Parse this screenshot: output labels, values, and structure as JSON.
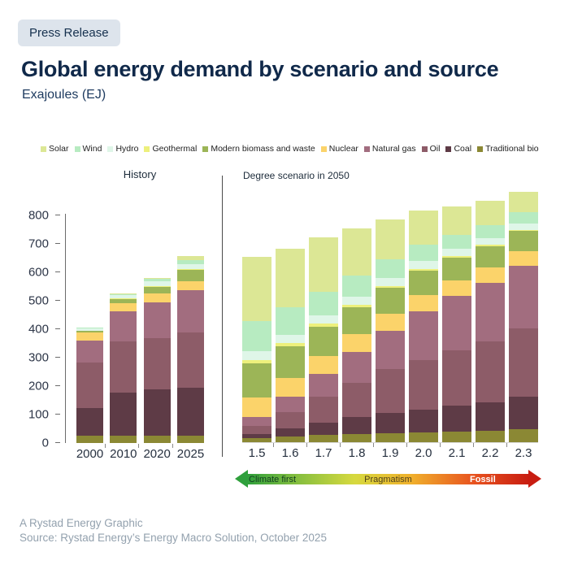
{
  "badge": "Press Release",
  "header": {
    "title": "Global energy demand by scenario and source",
    "subtitle": "Exajoules (EJ)"
  },
  "axis_arrow": {
    "left": "Climate first",
    "center": "Pragmatism",
    "right": "Fossil"
  },
  "footer": {
    "credit": "A Rystad Energy Graphic",
    "source": "Source: Rystad Energy’s Energy Macro Solution, October 2025"
  },
  "chart_data": {
    "type": "bar",
    "stacked": true,
    "unit": "EJ",
    "ylabel": "Exajoules (EJ)",
    "ylim": [
      0,
      800
    ],
    "yticks": [
      0,
      100,
      200,
      300,
      400,
      500,
      600,
      700,
      800
    ],
    "grid": false,
    "legend_position": "top",
    "panels": [
      {
        "title": "History",
        "categories": [
          "2000",
          "2010",
          "2020",
          "2025"
        ]
      },
      {
        "title": "Degree scenario in 2050",
        "categories": [
          "1.5",
          "1.6",
          "1.7",
          "1.8",
          "1.9",
          "2.0",
          "2.1",
          "2.2",
          "2.3"
        ]
      }
    ],
    "series": [
      {
        "name": "Solar",
        "color": "#dce795",
        "history": [
          0.5,
          1,
          5,
          12
        ],
        "scenario": [
          226,
          208,
          190,
          165,
          140,
          120,
          100,
          85,
          70
        ]
      },
      {
        "name": "Wind",
        "color": "#b7ebc1",
        "history": [
          1,
          3,
          8,
          16
        ],
        "scenario": [
          105,
          95,
          85,
          75,
          65,
          57,
          50,
          45,
          40
        ]
      },
      {
        "name": "Hydro",
        "color": "#dff6e8",
        "history": [
          9,
          12,
          16,
          16
        ],
        "scenario": [
          30,
          30,
          29,
          28,
          27,
          26,
          25,
          24,
          23
        ]
      },
      {
        "name": "Geothermal",
        "color": "#edf07c",
        "history": [
          1,
          2,
          2,
          2
        ],
        "scenario": [
          14,
          12,
          10,
          9,
          8,
          7,
          6,
          5,
          5
        ]
      },
      {
        "name": "Modern biomass and waste",
        "color": "#9cb557",
        "history": [
          5,
          15,
          25,
          40
        ],
        "scenario": [
          118,
          110,
          102,
          95,
          90,
          85,
          80,
          75,
          70
        ]
      },
      {
        "name": "Nuclear",
        "color": "#fbd36a",
        "history": [
          29,
          30,
          30,
          32
        ],
        "scenario": [
          69,
          66,
          64,
          62,
          60,
          58,
          56,
          54,
          52
        ]
      },
      {
        "name": "Natural gas",
        "color": "#a26d7f",
        "history": [
          78,
          105,
          125,
          150
        ],
        "scenario": [
          33,
          55,
          80,
          110,
          135,
          170,
          190,
          205,
          220
        ]
      },
      {
        "name": "Oil",
        "color": "#8d5c68",
        "history": [
          160,
          180,
          180,
          195
        ],
        "scenario": [
          27,
          55,
          90,
          120,
          155,
          175,
          195,
          215,
          240
        ]
      },
      {
        "name": "Coal",
        "color": "#5e3b46",
        "history": [
          97,
          150,
          165,
          168
        ],
        "scenario": [
          16,
          30,
          45,
          60,
          70,
          80,
          90,
          100,
          115
        ]
      },
      {
        "name": "Traditional bio",
        "color": "#8b8834",
        "history": [
          25,
          27,
          25,
          25
        ],
        "scenario": [
          13,
          20,
          25,
          28,
          32,
          35,
          38,
          40,
          45
        ]
      }
    ]
  }
}
